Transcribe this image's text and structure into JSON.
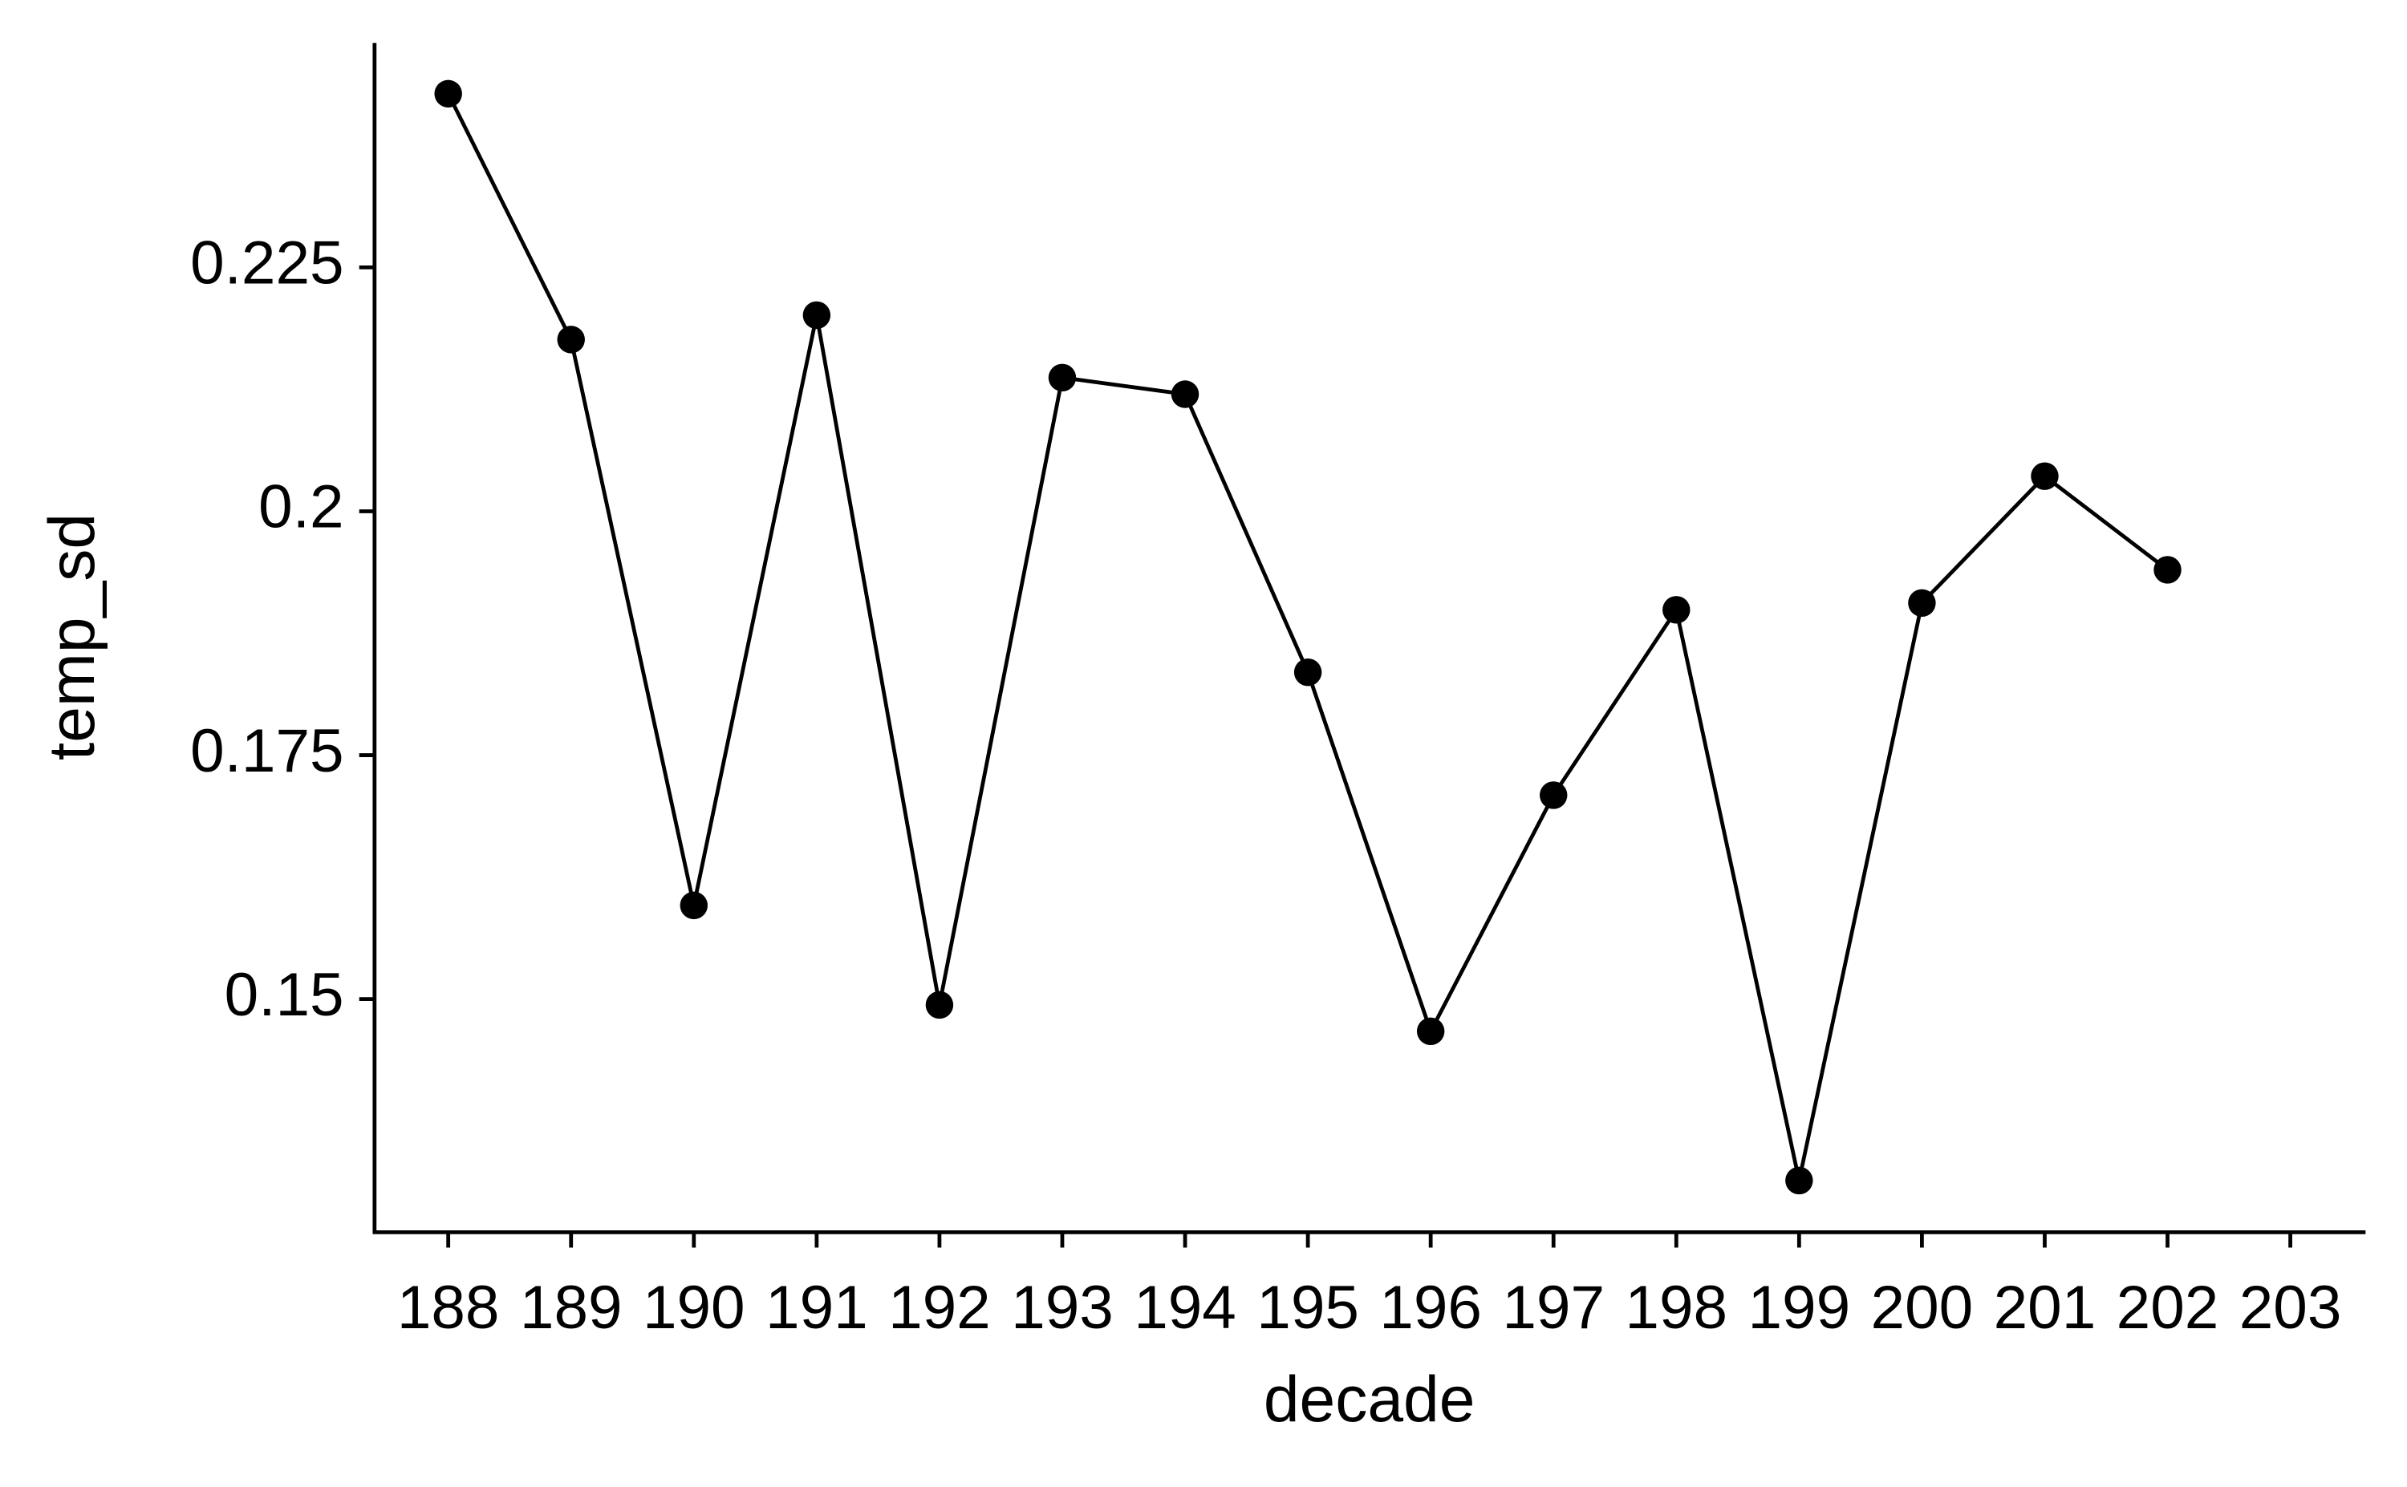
{
  "chart_data": {
    "type": "line",
    "x_label": "decade",
    "y_label": "temp_sd",
    "x": [
      188,
      189,
      190,
      191,
      192,
      193,
      194,
      195,
      196,
      197,
      198,
      199,
      200,
      201,
      202
    ],
    "series": [
      {
        "name": "temp_sd",
        "color": "#000000",
        "values": [
          0.2428,
          0.2176,
          0.1596,
          0.2201,
          0.1494,
          0.2137,
          0.212,
          0.1835,
          0.1467,
          0.1709,
          0.1899,
          0.1314,
          0.1906,
          0.2036,
          0.194
        ]
      }
    ],
    "xlim": [
      187.4,
      203.6
    ],
    "xticks": [
      188,
      189,
      190,
      191,
      192,
      193,
      194,
      195,
      196,
      197,
      198,
      199,
      200,
      201,
      202,
      203
    ],
    "ylim": [
      0.1261,
      0.248
    ],
    "yticks": [
      0.15,
      0.175,
      0.2,
      0.225
    ],
    "grid": false,
    "markers": true
  }
}
